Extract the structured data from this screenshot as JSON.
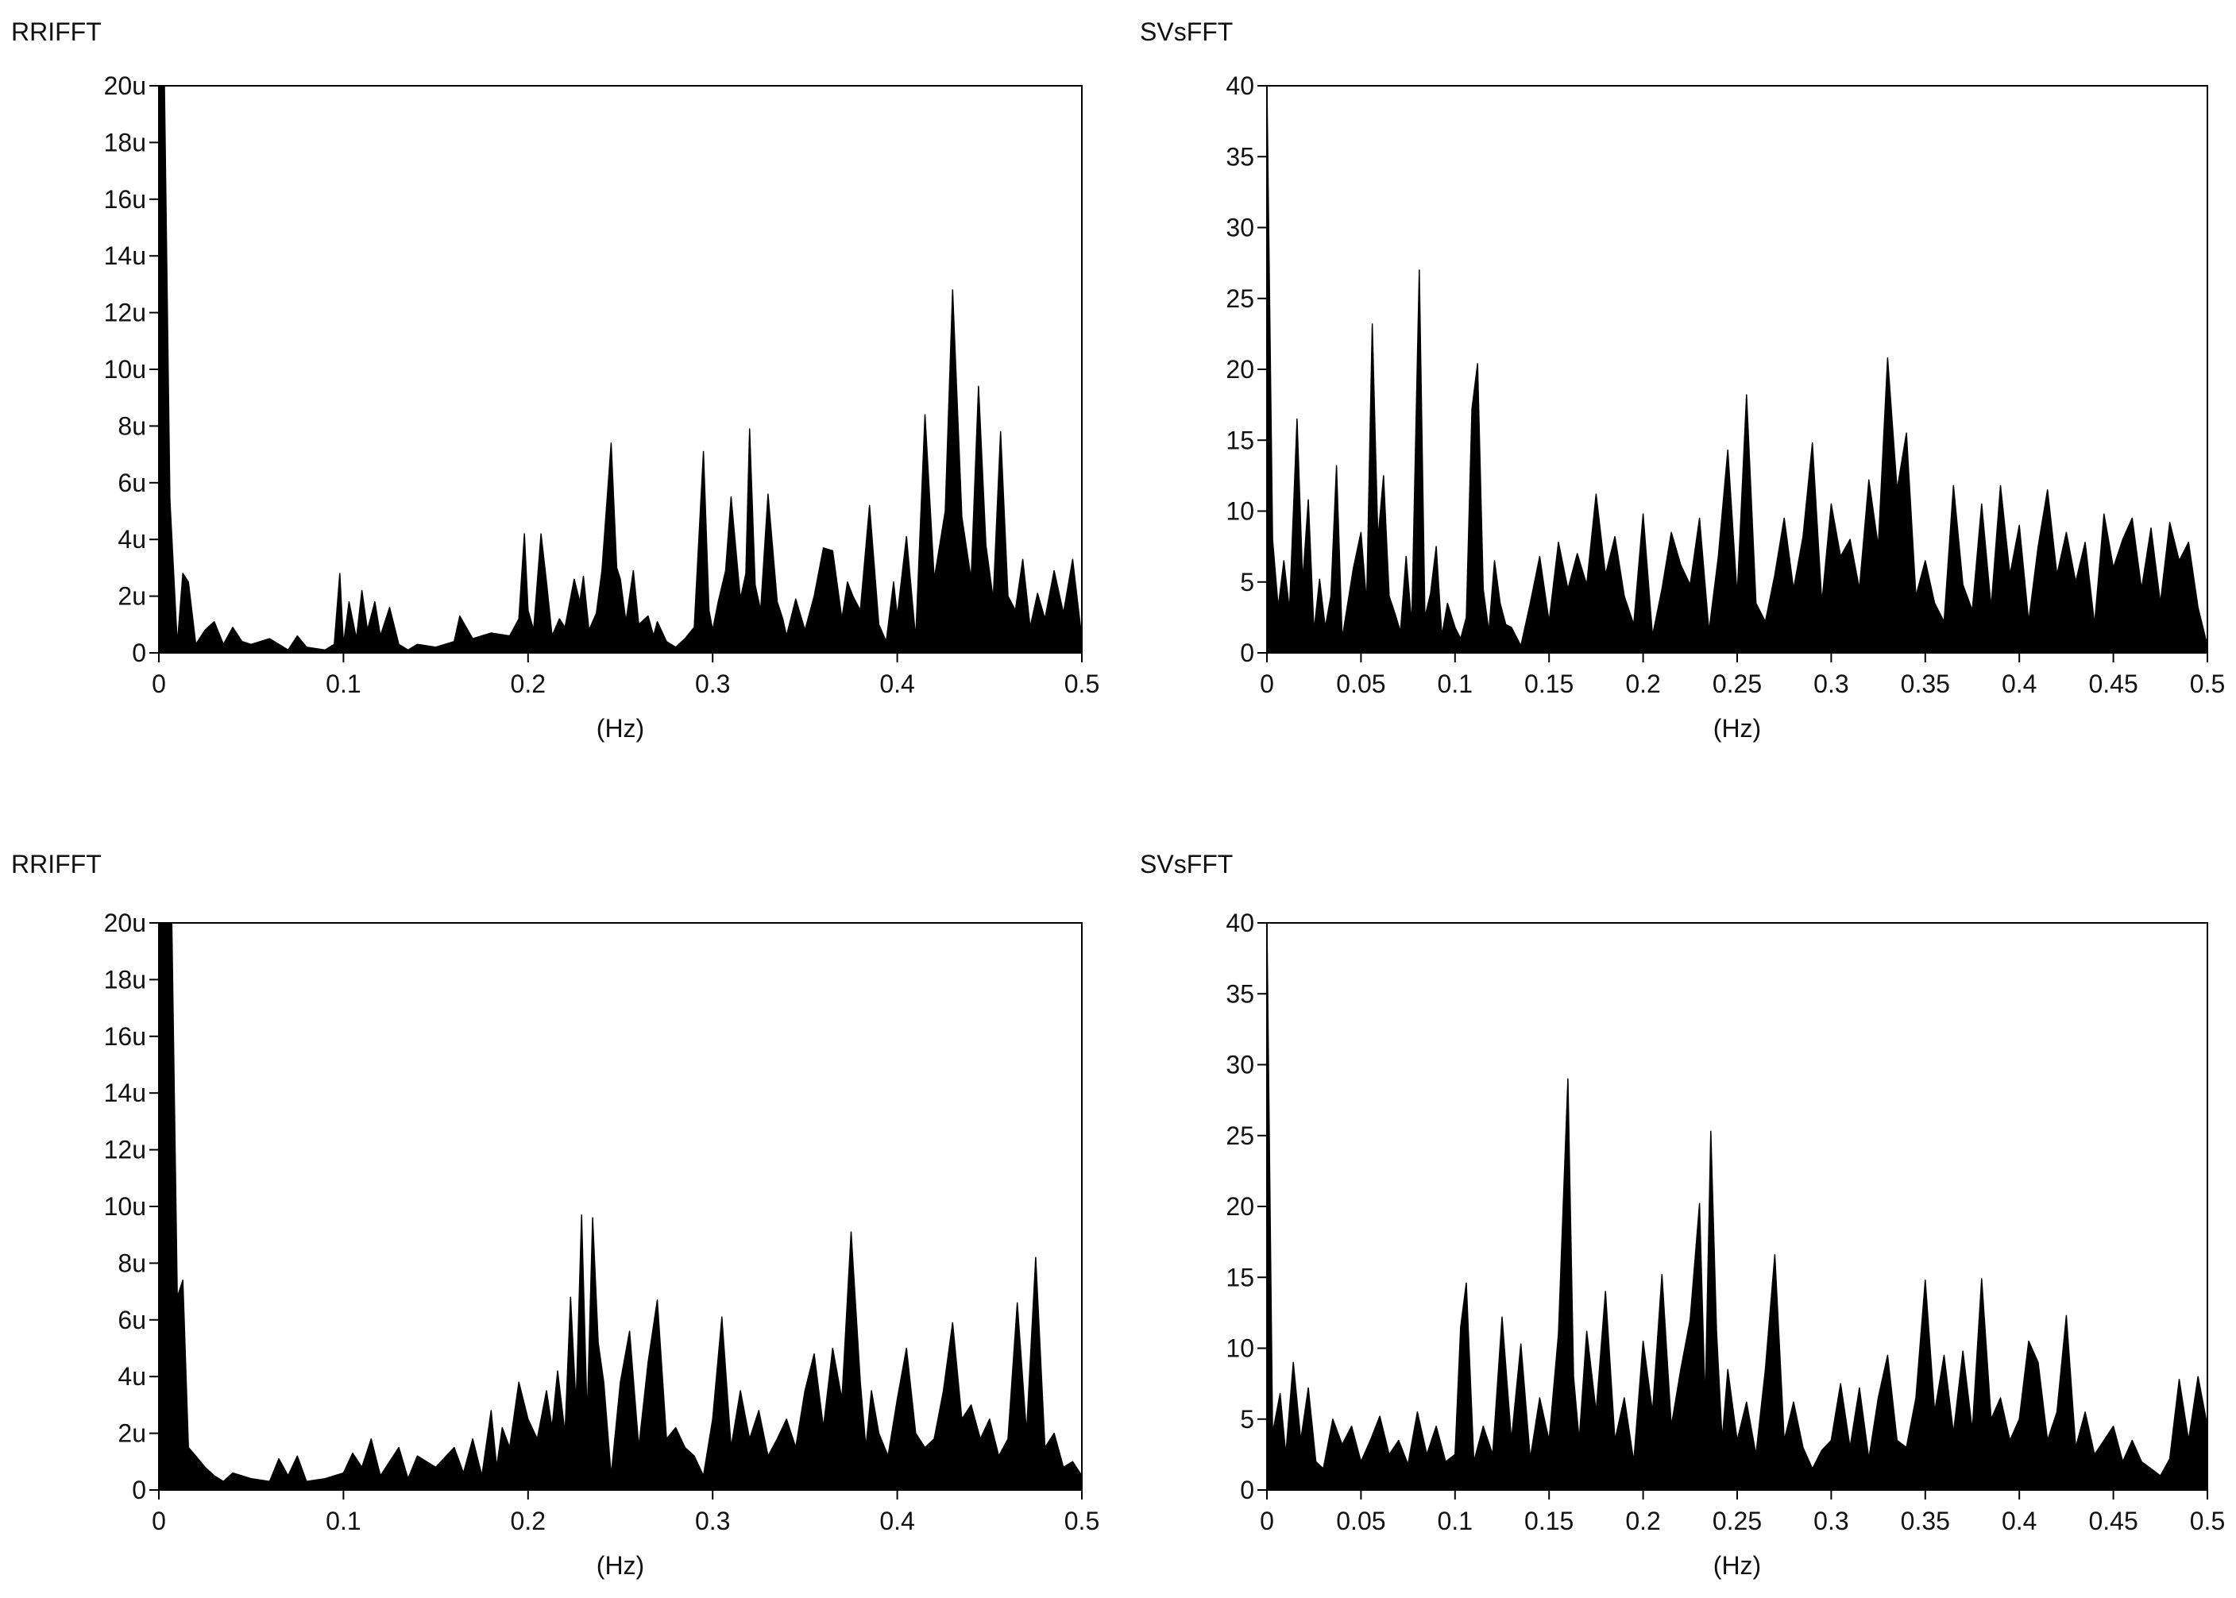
{
  "colors": {
    "background": "#ffffff",
    "fill": "#000000",
    "frame": "#000000",
    "text": "#111111"
  },
  "chart_data": [
    {
      "type": "area",
      "title": "RRIFFT",
      "xlabel": "(Hz)",
      "xlim": [
        0,
        0.5
      ],
      "ylim": [
        0,
        20
      ],
      "xticks": [
        0,
        0.1,
        0.2,
        0.3,
        0.4,
        0.5
      ],
      "xtick_labels": [
        "0",
        "0.1",
        "0.2",
        "0.3",
        "0.4",
        "0.5"
      ],
      "yticks": [
        0,
        2,
        4,
        6,
        8,
        10,
        12,
        14,
        16,
        18,
        20
      ],
      "ytick_labels": [
        "0",
        "2u",
        "4u",
        "6u",
        "8u",
        "10u",
        "12u",
        "14u",
        "16u",
        "18u",
        "20u"
      ],
      "series": [
        {
          "x": [
            0,
            0.003,
            0.006,
            0.01,
            0.013,
            0.016,
            0.02,
            0.025,
            0.03,
            0.035,
            0.04,
            0.045,
            0.05,
            0.06,
            0.07,
            0.075,
            0.08,
            0.09,
            0.095,
            0.098,
            0.1,
            0.103,
            0.107,
            0.11,
            0.113,
            0.117,
            0.12,
            0.125,
            0.13,
            0.135,
            0.14,
            0.15,
            0.16,
            0.163,
            0.17,
            0.18,
            0.19,
            0.195,
            0.198,
            0.2,
            0.203,
            0.207,
            0.21,
            0.213,
            0.217,
            0.22,
            0.225,
            0.228,
            0.23,
            0.233,
            0.237,
            0.24,
            0.245,
            0.248,
            0.25,
            0.253,
            0.257,
            0.26,
            0.265,
            0.268,
            0.27,
            0.275,
            0.28,
            0.285,
            0.29,
            0.295,
            0.298,
            0.3,
            0.303,
            0.307,
            0.31,
            0.315,
            0.318,
            0.32,
            0.323,
            0.326,
            0.33,
            0.335,
            0.338,
            0.34,
            0.345,
            0.35,
            0.355,
            0.36,
            0.365,
            0.37,
            0.373,
            0.376,
            0.38,
            0.385,
            0.39,
            0.394,
            0.398,
            0.4,
            0.405,
            0.41,
            0.415,
            0.42,
            0.423,
            0.426,
            0.43,
            0.435,
            0.44,
            0.444,
            0.448,
            0.452,
            0.456,
            0.46,
            0.464,
            0.468,
            0.472,
            0.476,
            0.48,
            0.485,
            0.49,
            0.495,
            0.5
          ],
          "y": [
            20,
            20,
            5.4,
            0.3,
            2.8,
            2.5,
            0.3,
            0.8,
            1.1,
            0.3,
            0.9,
            0.4,
            0.3,
            0.5,
            0.1,
            0.6,
            0.2,
            0.1,
            0.3,
            2.8,
            0.3,
            1.8,
            0.5,
            2.2,
            0.8,
            1.8,
            0.6,
            1.6,
            0.3,
            0.1,
            0.3,
            0.2,
            0.4,
            1.3,
            0.5,
            0.7,
            0.6,
            1.2,
            4.2,
            1.5,
            0.8,
            4.2,
            2.5,
            0.6,
            1.2,
            0.9,
            2.6,
            1.8,
            2.7,
            0.8,
            1.4,
            2.9,
            7.4,
            3.0,
            2.6,
            1.1,
            2.9,
            1.0,
            1.3,
            0.6,
            1.1,
            0.4,
            0.2,
            0.5,
            0.9,
            7.1,
            1.5,
            0.8,
            1.8,
            2.9,
            5.5,
            1.9,
            2.8,
            7.9,
            2.4,
            1.5,
            5.6,
            1.8,
            1.2,
            0.6,
            1.9,
            0.8,
            2.0,
            3.7,
            3.6,
            1.2,
            2.5,
            2.0,
            1.5,
            5.2,
            1.0,
            0.4,
            2.5,
            1.3,
            4.1,
            0.5,
            8.4,
            2.6,
            3.8,
            5.0,
            12.8,
            4.8,
            2.6,
            9.4,
            3.8,
            1.9,
            7.8,
            2.0,
            1.5,
            3.3,
            0.9,
            2.1,
            1.2,
            2.9,
            1.4,
            3.3,
            0.5
          ]
        }
      ]
    },
    {
      "type": "area",
      "title": "SVsFFT",
      "xlabel": "(Hz)",
      "xlim": [
        0,
        0.5
      ],
      "ylim": [
        0,
        40
      ],
      "xticks": [
        0,
        0.05,
        0.1,
        0.15,
        0.2,
        0.25,
        0.3,
        0.35,
        0.4,
        0.45,
        0.5
      ],
      "xtick_labels": [
        "0",
        "0.05",
        "0.1",
        "0.15",
        "0.2",
        "0.25",
        "0.3",
        "0.35",
        "0.4",
        "0.45",
        "0.5"
      ],
      "yticks": [
        0,
        5,
        10,
        15,
        20,
        25,
        30,
        35,
        40
      ],
      "ytick_labels": [
        "0",
        "5",
        "10",
        "15",
        "20",
        "25",
        "30",
        "35",
        "40"
      ],
      "series": [
        {
          "x": [
            0,
            0.003,
            0.006,
            0.009,
            0.012,
            0.016,
            0.019,
            0.022,
            0.025,
            0.028,
            0.031,
            0.034,
            0.037,
            0.04,
            0.043,
            0.046,
            0.05,
            0.053,
            0.056,
            0.059,
            0.062,
            0.065,
            0.068,
            0.071,
            0.074,
            0.077,
            0.081,
            0.084,
            0.087,
            0.09,
            0.093,
            0.096,
            0.1,
            0.103,
            0.106,
            0.109,
            0.112,
            0.115,
            0.118,
            0.121,
            0.124,
            0.127,
            0.13,
            0.135,
            0.14,
            0.145,
            0.15,
            0.155,
            0.16,
            0.165,
            0.17,
            0.175,
            0.18,
            0.185,
            0.19,
            0.195,
            0.2,
            0.205,
            0.21,
            0.215,
            0.22,
            0.225,
            0.23,
            0.235,
            0.24,
            0.245,
            0.25,
            0.255,
            0.26,
            0.265,
            0.27,
            0.275,
            0.28,
            0.285,
            0.29,
            0.295,
            0.3,
            0.305,
            0.31,
            0.315,
            0.32,
            0.325,
            0.33,
            0.335,
            0.34,
            0.345,
            0.35,
            0.355,
            0.36,
            0.365,
            0.37,
            0.375,
            0.38,
            0.385,
            0.39,
            0.395,
            0.4,
            0.405,
            0.41,
            0.415,
            0.42,
            0.425,
            0.43,
            0.435,
            0.44,
            0.445,
            0.45,
            0.455,
            0.46,
            0.465,
            0.47,
            0.475,
            0.48,
            0.485,
            0.49,
            0.495,
            0.5
          ],
          "y": [
            40,
            8,
            3.2,
            6.5,
            3.0,
            16.5,
            5.0,
            10.8,
            1.5,
            5.2,
            1.8,
            4.0,
            13.2,
            1.0,
            3.5,
            6.0,
            8.5,
            3.5,
            23.2,
            8.0,
            12.5,
            4.0,
            2.8,
            1.5,
            6.8,
            2.0,
            27.0,
            2.5,
            4.2,
            7.5,
            1.2,
            3.5,
            1.8,
            1.0,
            2.5,
            17.2,
            20.4,
            4.5,
            1.5,
            6.5,
            3.5,
            2.0,
            1.8,
            0.5,
            3.5,
            6.8,
            2.2,
            7.8,
            4.5,
            7.0,
            4.8,
            11.2,
            5.5,
            8.2,
            4.0,
            2.0,
            9.8,
            1.2,
            4.5,
            8.5,
            6.2,
            4.8,
            9.5,
            1.5,
            6.8,
            14.3,
            4.0,
            18.2,
            3.5,
            2.2,
            5.5,
            9.5,
            4.5,
            8.2,
            14.8,
            3.5,
            10.5,
            6.8,
            8.0,
            4.5,
            12.2,
            7.5,
            20.8,
            11.5,
            15.5,
            4.0,
            6.5,
            3.5,
            2.2,
            11.8,
            4.8,
            3.0,
            10.5,
            3.2,
            11.8,
            5.5,
            9.0,
            2.2,
            7.5,
            11.5,
            5.5,
            8.5,
            5.0,
            7.8,
            2.0,
            9.8,
            6.0,
            8.0,
            9.5,
            4.5,
            8.8,
            3.5,
            9.2,
            6.5,
            7.8,
            3.2,
            0.5
          ]
        }
      ]
    },
    {
      "type": "area",
      "title": "RRIFFT",
      "xlabel": "(Hz)",
      "xlim": [
        0,
        0.5
      ],
      "ylim": [
        0,
        20
      ],
      "xticks": [
        0,
        0.1,
        0.2,
        0.3,
        0.4,
        0.5
      ],
      "xtick_labels": [
        "0",
        "0.1",
        "0.2",
        "0.3",
        "0.4",
        "0.5"
      ],
      "yticks": [
        0,
        2,
        4,
        6,
        8,
        10,
        12,
        14,
        16,
        18,
        20
      ],
      "ytick_labels": [
        "0",
        "2u",
        "4u",
        "6u",
        "8u",
        "10u",
        "12u",
        "14u",
        "16u",
        "18u",
        "20u"
      ],
      "series": [
        {
          "x": [
            0,
            0.003,
            0.007,
            0.01,
            0.013,
            0.016,
            0.02,
            0.025,
            0.03,
            0.035,
            0.04,
            0.05,
            0.06,
            0.065,
            0.07,
            0.075,
            0.08,
            0.09,
            0.1,
            0.105,
            0.11,
            0.115,
            0.12,
            0.13,
            0.135,
            0.14,
            0.15,
            0.16,
            0.165,
            0.17,
            0.175,
            0.18,
            0.183,
            0.186,
            0.19,
            0.195,
            0.2,
            0.205,
            0.21,
            0.213,
            0.216,
            0.22,
            0.223,
            0.226,
            0.229,
            0.232,
            0.235,
            0.238,
            0.241,
            0.245,
            0.25,
            0.255,
            0.26,
            0.265,
            0.27,
            0.275,
            0.28,
            0.285,
            0.29,
            0.295,
            0.3,
            0.305,
            0.31,
            0.315,
            0.32,
            0.325,
            0.33,
            0.335,
            0.34,
            0.345,
            0.35,
            0.355,
            0.36,
            0.365,
            0.37,
            0.375,
            0.38,
            0.383,
            0.386,
            0.39,
            0.395,
            0.4,
            0.405,
            0.41,
            0.415,
            0.42,
            0.425,
            0.43,
            0.435,
            0.44,
            0.445,
            0.45,
            0.455,
            0.46,
            0.465,
            0.47,
            0.475,
            0.48,
            0.485,
            0.49,
            0.495,
            0.5
          ],
          "y": [
            20,
            20,
            20,
            6.8,
            7.4,
            1.5,
            1.2,
            0.8,
            0.5,
            0.3,
            0.6,
            0.4,
            0.3,
            1.1,
            0.5,
            1.2,
            0.3,
            0.4,
            0.6,
            1.3,
            0.8,
            1.8,
            0.5,
            1.5,
            0.4,
            1.2,
            0.8,
            1.5,
            0.6,
            1.8,
            0.5,
            2.8,
            0.8,
            2.2,
            1.5,
            3.8,
            2.5,
            1.8,
            3.5,
            2.2,
            4.2,
            2.0,
            6.8,
            3.0,
            9.7,
            2.5,
            9.6,
            5.2,
            3.8,
            0.5,
            3.8,
            5.6,
            1.5,
            4.5,
            6.7,
            1.8,
            2.2,
            1.5,
            1.2,
            0.5,
            2.5,
            6.1,
            1.5,
            3.5,
            1.8,
            2.8,
            1.2,
            1.8,
            2.5,
            1.5,
            3.5,
            4.8,
            2.2,
            5.0,
            3.2,
            9.1,
            3.8,
            1.5,
            3.5,
            2.0,
            1.2,
            3.2,
            5.0,
            2.0,
            1.5,
            1.8,
            3.5,
            5.9,
            2.5,
            3.0,
            1.8,
            2.5,
            1.2,
            1.8,
            6.6,
            2.0,
            8.2,
            1.5,
            2.0,
            0.8,
            1.0,
            0.5
          ]
        }
      ]
    },
    {
      "type": "area",
      "title": "SVsFFT",
      "xlabel": "(Hz)",
      "xlim": [
        0,
        0.5
      ],
      "ylim": [
        0,
        40
      ],
      "xticks": [
        0,
        0.05,
        0.1,
        0.15,
        0.2,
        0.25,
        0.3,
        0.35,
        0.4,
        0.45,
        0.5
      ],
      "xtick_labels": [
        "0",
        "0.05",
        "0.1",
        "0.15",
        "0.2",
        "0.25",
        "0.3",
        "0.35",
        "0.4",
        "0.45",
        "0.5"
      ],
      "yticks": [
        0,
        5,
        10,
        15,
        20,
        25,
        30,
        35,
        40
      ],
      "ytick_labels": [
        "0",
        "5",
        "10",
        "15",
        "20",
        "25",
        "30",
        "35",
        "40"
      ],
      "series": [
        {
          "x": [
            0,
            0.003,
            0.007,
            0.01,
            0.014,
            0.018,
            0.022,
            0.026,
            0.03,
            0.035,
            0.04,
            0.045,
            0.05,
            0.055,
            0.06,
            0.065,
            0.07,
            0.075,
            0.08,
            0.085,
            0.09,
            0.095,
            0.1,
            0.103,
            0.106,
            0.11,
            0.115,
            0.12,
            0.125,
            0.13,
            0.135,
            0.14,
            0.145,
            0.15,
            0.155,
            0.16,
            0.163,
            0.166,
            0.17,
            0.175,
            0.18,
            0.185,
            0.19,
            0.195,
            0.2,
            0.205,
            0.21,
            0.215,
            0.22,
            0.225,
            0.23,
            0.233,
            0.236,
            0.239,
            0.242,
            0.245,
            0.25,
            0.255,
            0.26,
            0.265,
            0.27,
            0.275,
            0.28,
            0.285,
            0.29,
            0.295,
            0.3,
            0.305,
            0.31,
            0.315,
            0.32,
            0.325,
            0.33,
            0.335,
            0.34,
            0.345,
            0.35,
            0.355,
            0.36,
            0.365,
            0.37,
            0.375,
            0.38,
            0.385,
            0.39,
            0.395,
            0.4,
            0.405,
            0.41,
            0.415,
            0.42,
            0.425,
            0.43,
            0.435,
            0.44,
            0.445,
            0.45,
            0.455,
            0.46,
            0.465,
            0.47,
            0.475,
            0.48,
            0.485,
            0.49,
            0.495,
            0.5
          ],
          "y": [
            40,
            4.0,
            6.8,
            2.5,
            9.0,
            3.5,
            7.2,
            2.0,
            1.5,
            5.0,
            3.2,
            4.5,
            2.0,
            3.5,
            5.2,
            2.5,
            3.5,
            1.8,
            5.5,
            2.5,
            4.5,
            2.0,
            2.5,
            11.5,
            14.6,
            2.0,
            4.5,
            2.5,
            12.2,
            3.5,
            10.3,
            2.2,
            6.5,
            3.5,
            11.0,
            29.0,
            8.0,
            3.5,
            11.2,
            5.5,
            14.0,
            3.5,
            6.5,
            2.0,
            10.5,
            5.5,
            15.2,
            4.5,
            8.5,
            12.0,
            20.2,
            6.0,
            25.3,
            11.2,
            3.5,
            8.5,
            3.5,
            6.2,
            2.5,
            8.5,
            16.6,
            3.5,
            6.2,
            3.0,
            1.5,
            2.8,
            3.5,
            7.5,
            3.0,
            7.2,
            2.2,
            6.5,
            9.5,
            3.5,
            3.0,
            6.5,
            14.8,
            5.5,
            9.5,
            4.0,
            9.8,
            4.2,
            14.9,
            5.0,
            6.5,
            3.5,
            5.0,
            10.5,
            9.0,
            3.5,
            5.5,
            12.3,
            3.0,
            5.5,
            2.5,
            3.5,
            4.5,
            2.0,
            3.5,
            2.0,
            1.5,
            1.0,
            2.2,
            7.8,
            3.5,
            8.0,
            4.5
          ]
        }
      ]
    }
  ]
}
